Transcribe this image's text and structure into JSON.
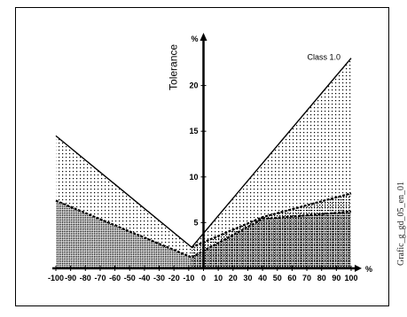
{
  "side_caption": "Grafic_g_gd_05_en_01",
  "chart_data": {
    "type": "area",
    "title": "",
    "ylabel": "Tolerance",
    "y_unit_label": "%",
    "xlabel": "",
    "x_unit_label": "%",
    "xlim": [
      -100,
      100
    ],
    "ylim": [
      0,
      25
    ],
    "x_ticks": [
      -100,
      -90,
      -80,
      -70,
      -60,
      -50,
      -40,
      -30,
      -20,
      -10,
      0,
      10,
      20,
      30,
      40,
      50,
      60,
      70,
      80,
      90,
      100
    ],
    "x_tick_labels": [
      "-100",
      "-90",
      "-80",
      "-70",
      "-60",
      "-50",
      "-40",
      "-30",
      "-20",
      "-10",
      "0",
      "10",
      "20",
      "30",
      "40",
      "50",
      "60",
      "70",
      "80",
      "90",
      "100"
    ],
    "y_ticks": [
      5,
      10,
      15,
      20
    ],
    "y_tick_labels": [
      "5",
      "10",
      "15",
      "20"
    ],
    "grid": false,
    "series": [
      {
        "name": "Class 1.0",
        "x": [
          -100,
          -8,
          100
        ],
        "y": [
          14.5,
          2.3,
          23.0
        ]
      },
      {
        "name": "",
        "x": [
          -8,
          40,
          100
        ],
        "y": [
          2.3,
          5.6,
          8.2
        ]
      },
      {
        "name": "",
        "x": [
          -100,
          -8,
          40,
          100
        ],
        "y": [
          7.4,
          1.2,
          5.4,
          6.2
        ]
      }
    ],
    "colors": {
      "stroke": "#000000",
      "dots": "#000000",
      "background": "#ffffff"
    }
  }
}
